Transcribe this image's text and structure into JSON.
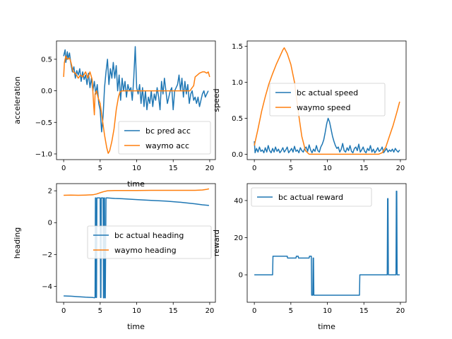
{
  "chart_data": [
    {
      "type": "line",
      "xlabel": "time",
      "ylabel": "acceleration",
      "xlim": [
        -0.98,
        20.78
      ],
      "ylim": [
        -1.09,
        0.79
      ],
      "xticks": [
        0,
        5,
        10,
        15,
        20
      ],
      "yticks": [
        -1.0,
        -0.5,
        0.0,
        0.5
      ],
      "ytick_labels": [
        "−1.0",
        "−0.5",
        "0.0",
        "0.5"
      ],
      "legend_position": "lower right",
      "series": [
        {
          "name": "bc pred acc",
          "color": "#1f77b4",
          "x": [
            0,
            0.2,
            0.3,
            0.5,
            0.6,
            0.8,
            1,
            1.2,
            1.4,
            1.6,
            1.8,
            2,
            2.2,
            2.4,
            2.6,
            2.8,
            3,
            3.2,
            3.4,
            3.6,
            3.8,
            4,
            4.2,
            4.4,
            4.6,
            4.8,
            5,
            5.2,
            5.4,
            5.6,
            5.8,
            6,
            6.2,
            6.4,
            6.6,
            6.8,
            7,
            7.2,
            7.4,
            7.6,
            7.8,
            8,
            8.2,
            8.4,
            8.6,
            8.8,
            9,
            9.2,
            9.4,
            9.6,
            9.8,
            10,
            10.2,
            10.4,
            10.6,
            10.8,
            11,
            11.2,
            11.4,
            11.6,
            11.8,
            12,
            12.2,
            12.4,
            12.6,
            12.8,
            13,
            13.2,
            13.4,
            13.6,
            13.8,
            14,
            14.2,
            14.4,
            14.6,
            14.8,
            15,
            15.2,
            15.4,
            15.6,
            15.8,
            16,
            16.2,
            16.4,
            16.6,
            16.8,
            17,
            17.2,
            17.4,
            17.6,
            17.8,
            18,
            18.2,
            18.4,
            18.6,
            18.8,
            19,
            19.2,
            19.4,
            19.6,
            19.8
          ],
          "y": [
            0.55,
            0.65,
            0.45,
            0.62,
            0.5,
            0.6,
            0.42,
            0.3,
            0.38,
            0.2,
            0.32,
            0.25,
            0.35,
            0.15,
            0.3,
            0.18,
            0.25,
            0.1,
            0.28,
            0.05,
            0.2,
            0.0,
            0.15,
            -0.05,
            0.1,
            -0.2,
            -0.3,
            -0.65,
            -0.4,
            0.05,
            0.3,
            0.5,
            0.1,
            0.35,
            0.2,
            0.45,
            0.2,
            0.4,
            0.0,
            0.25,
            -0.15,
            0.2,
            0.0,
            0.15,
            -0.1,
            0.1,
            0.0,
            0.05,
            -0.15,
            0.2,
            0.7,
            0.05,
            -0.05,
            0.1,
            -0.2,
            0.05,
            -0.25,
            0.0,
            -0.3,
            -0.1,
            -0.2,
            0.0,
            -0.25,
            -0.05,
            -0.15,
            0.05,
            -0.1,
            -0.3,
            0.15,
            -0.05,
            0.2,
            0.0,
            -0.2,
            -0.1,
            0.0,
            0.05,
            -0.3,
            0.0,
            0.05,
            0.1,
            0.25,
            0.0,
            0.2,
            -0.1,
            0.15,
            -0.05,
            0.1,
            -0.2,
            -0.05,
            0.0,
            -0.15,
            -0.1,
            -0.2,
            -0.1,
            -0.25,
            -0.15,
            -0.05,
            0.0,
            -0.1,
            -0.05,
            0.0
          ]
        },
        {
          "name": "waymo acc",
          "color": "#ff7f0e",
          "x": [
            0,
            0.1,
            0.3,
            0.5,
            0.8,
            1,
            1.3,
            1.6,
            2,
            2.3,
            2.6,
            3,
            3.3,
            3.6,
            3.9,
            4.1,
            4.2,
            4.3,
            4.5,
            4.7,
            5,
            5.3,
            5.6,
            5.9,
            6.1,
            6.3,
            6.6,
            6.9,
            7.2,
            7.5,
            7.7,
            8,
            8.5,
            9,
            10,
            11,
            12,
            13,
            14,
            15,
            16,
            17,
            17.3,
            17.6,
            17.8,
            18,
            18.3,
            18.6,
            19,
            19.3,
            19.6,
            19.8,
            20
          ],
          "y": [
            0.22,
            0.45,
            0.55,
            0.5,
            0.52,
            0.45,
            0.3,
            0.28,
            0.2,
            0.25,
            0.22,
            0.3,
            0.2,
            0.3,
            0.18,
            -0.2,
            -0.38,
            -0.05,
            0.0,
            -0.1,
            -0.2,
            -0.45,
            -0.7,
            -0.9,
            -0.99,
            -0.95,
            -0.8,
            -0.6,
            -0.3,
            -0.1,
            -0.02,
            0.0,
            0.0,
            0.0,
            0.0,
            0.0,
            0.0,
            0.0,
            0.0,
            0.0,
            0.0,
            0.0,
            0.0,
            0.05,
            0.08,
            0.22,
            0.25,
            0.28,
            0.3,
            0.3,
            0.28,
            0.3,
            0.22
          ]
        }
      ]
    },
    {
      "type": "line",
      "xlabel": "",
      "ylabel": "speed",
      "xlim": [
        -0.98,
        20.78
      ],
      "ylim": [
        -0.075,
        1.575
      ],
      "xticks": [
        0,
        5,
        10,
        15,
        20
      ],
      "yticks": [
        0.0,
        0.5,
        1.0,
        1.5
      ],
      "ytick_labels": [
        "0.0",
        "0.5",
        "1.0",
        "1.5"
      ],
      "legend_position": "center",
      "series": [
        {
          "name": "bc actual speed",
          "color": "#1f77b4",
          "x": [
            0,
            0.1,
            0.3,
            0.5,
            0.7,
            0.9,
            1.1,
            1.3,
            1.5,
            1.7,
            1.9,
            2.1,
            2.3,
            2.5,
            2.7,
            2.9,
            3.1,
            3.3,
            3.5,
            3.7,
            3.9,
            4.1,
            4.3,
            4.5,
            4.7,
            4.9,
            5.1,
            5.3,
            5.5,
            5.7,
            5.9,
            6.1,
            6.3,
            6.5,
            6.7,
            6.9,
            7.1,
            7.3,
            7.5,
            7.7,
            7.9,
            8.1,
            8.3,
            8.5,
            8.7,
            8.9,
            9.1,
            9.3,
            9.5,
            9.7,
            9.9,
            10.1,
            10.3,
            10.5,
            10.7,
            10.9,
            11.1,
            11.3,
            11.5,
            11.7,
            11.9,
            12.1,
            12.3,
            12.5,
            12.7,
            12.9,
            13.1,
            13.3,
            13.5,
            13.7,
            13.9,
            14.1,
            14.3,
            14.5,
            14.7,
            14.9,
            15.1,
            15.3,
            15.5,
            15.7,
            15.9,
            16.1,
            16.3,
            16.5,
            16.7,
            16.9,
            17.1,
            17.3,
            17.5,
            17.7,
            17.9,
            18.1,
            18.3,
            18.5,
            18.7,
            18.9,
            19.1,
            19.3,
            19.5,
            19.7,
            19.9
          ],
          "y": [
            0.18,
            0.02,
            0.08,
            0.03,
            0.1,
            0.04,
            0.06,
            0.02,
            0.09,
            0.03,
            0.12,
            0.05,
            0.02,
            0.08,
            0.03,
            0.1,
            0.04,
            0.07,
            0.02,
            0.05,
            0.09,
            0.03,
            0.06,
            0.1,
            0.02,
            0.05,
            0.08,
            0.03,
            0.11,
            0.04,
            0.06,
            0.02,
            0.09,
            0.05,
            0.03,
            0.08,
            0.1,
            0.04,
            0.13,
            0.06,
            0.02,
            0.07,
            0.04,
            0.12,
            0.05,
            0.03,
            0.1,
            0.14,
            0.2,
            0.3,
            0.42,
            0.5,
            0.45,
            0.35,
            0.25,
            0.18,
            0.12,
            0.08,
            0.1,
            0.03,
            0.07,
            0.15,
            0.05,
            0.03,
            0.09,
            0.05,
            0.12,
            0.04,
            0.02,
            0.08,
            0.1,
            0.05,
            0.14,
            0.03,
            0.06,
            0.1,
            0.04,
            0.02,
            0.08,
            0.05,
            0.12,
            0.03,
            0.07,
            0.02,
            0.05,
            0.09,
            0.04,
            0.06,
            0.1,
            0.02,
            0.05,
            0.08,
            0.03,
            0.06,
            0.04,
            0.07,
            0.03,
            0.08,
            0.05,
            0.03,
            0.06
          ]
        },
        {
          "name": "waymo speed",
          "color": "#ff7f0e",
          "x": [
            0,
            0.5,
            1,
            1.5,
            2,
            2.5,
            3,
            3.5,
            3.9,
            4.1,
            4.5,
            5,
            5.5,
            6,
            6.5,
            7,
            7.5,
            8,
            9,
            10,
            11,
            12,
            13,
            14,
            15,
            16,
            17,
            17.5,
            18,
            18.5,
            19,
            19.5,
            19.9
          ],
          "y": [
            0.12,
            0.35,
            0.6,
            0.8,
            0.98,
            1.12,
            1.25,
            1.36,
            1.45,
            1.48,
            1.4,
            1.25,
            1.0,
            0.6,
            0.25,
            0.05,
            0.0,
            0.0,
            0.0,
            0.0,
            0.0,
            0.0,
            0.0,
            0.0,
            0.0,
            0.0,
            0.0,
            0.02,
            0.1,
            0.25,
            0.4,
            0.58,
            0.73
          ]
        }
      ]
    },
    {
      "type": "line",
      "xlabel": "time",
      "ylabel": "heading",
      "xlim": [
        -0.98,
        20.78
      ],
      "ylim": [
        -5.0,
        2.45
      ],
      "xticks": [
        0,
        5,
        10,
        15,
        20
      ],
      "yticks": [
        -4,
        -2,
        0,
        2
      ],
      "ytick_labels": [
        "−4",
        "−2",
        "0",
        "2"
      ],
      "legend_position": "center right",
      "series": [
        {
          "name": "bc actual heading",
          "color": "#1f77b4",
          "x": [
            0,
            1,
            2,
            3,
            4,
            4.2,
            4.3,
            4.35,
            4.4,
            4.45,
            4.5,
            4.55,
            4.6,
            5.0,
            5.05,
            5.1,
            5.15,
            5.2,
            5.25,
            5.3,
            5.4,
            5.45,
            5.5,
            5.55,
            5.6,
            5.65,
            5.7,
            5.8,
            6,
            7,
            8,
            10,
            12,
            14,
            16,
            18,
            19,
            19.9
          ],
          "y": [
            -4.6,
            -4.62,
            -4.65,
            -4.68,
            -4.7,
            -4.72,
            -4.7,
            1.55,
            1.55,
            -4.7,
            -4.7,
            1.55,
            1.55,
            1.55,
            -4.7,
            -4.7,
            1.55,
            1.55,
            1.55,
            1.55,
            1.55,
            -4.72,
            -4.72,
            1.55,
            1.55,
            -4.72,
            -4.72,
            1.55,
            1.55,
            1.52,
            1.5,
            1.45,
            1.4,
            1.35,
            1.28,
            1.18,
            1.12,
            1.08
          ]
        },
        {
          "name": "waymo heading",
          "color": "#ff7f0e",
          "x": [
            0,
            1,
            2,
            3,
            4,
            4.5,
            5,
            5.5,
            6,
            7,
            8,
            10,
            12,
            14,
            16,
            18,
            19,
            19.5,
            19.9
          ],
          "y": [
            1.72,
            1.73,
            1.72,
            1.73,
            1.75,
            1.8,
            1.88,
            1.95,
            2.0,
            2.02,
            2.02,
            2.02,
            2.03,
            2.03,
            2.03,
            2.03,
            2.05,
            2.08,
            2.12
          ]
        }
      ]
    },
    {
      "type": "line",
      "xlabel": "time",
      "ylabel": "reward",
      "xlim": [
        -0.98,
        20.78
      ],
      "ylim": [
        -14.8,
        49.1
      ],
      "xticks": [
        0,
        5,
        10,
        15,
        20
      ],
      "yticks": [
        0,
        20,
        40
      ],
      "ytick_labels": [
        "0",
        "20",
        "40"
      ],
      "legend_position": "upper left",
      "series": [
        {
          "name": "bc actual reward",
          "color": "#1f77b4",
          "x": [
            0,
            2.5,
            2.55,
            4.5,
            4.55,
            5.7,
            5.75,
            6.0,
            6.05,
            7.5,
            7.55,
            7.8,
            7.85,
            8.0,
            8.05,
            8.1,
            8.15,
            8.2,
            14.4,
            14.45,
            18.2,
            18.25,
            18.3,
            18.35,
            19.4,
            19.45,
            19.5,
            19.55,
            19.9
          ],
          "y": [
            0,
            0,
            10,
            10,
            9,
            9,
            10,
            10,
            9,
            9,
            10,
            10,
            -11,
            -11,
            9,
            9,
            -11,
            -11,
            -11,
            0,
            0,
            41,
            41,
            0,
            0,
            45,
            45,
            0,
            0
          ]
        }
      ]
    }
  ]
}
